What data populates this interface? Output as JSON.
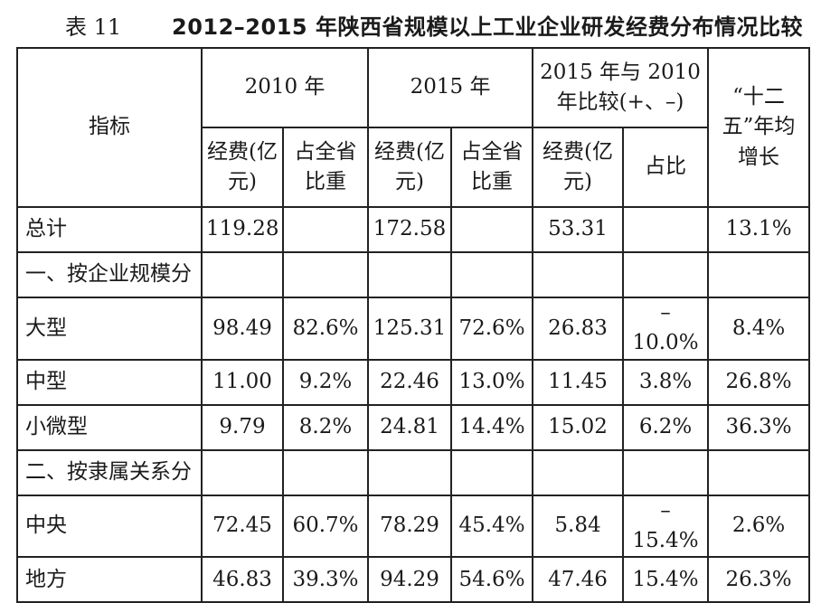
{
  "header": {
    "label": "表 11",
    "title": "2012–2015 年陕西省规模以上工业企业研发经费分布情况比较"
  },
  "table": {
    "columns": {
      "indicator": "指标",
      "groups": [
        "2010 年",
        "2015 年",
        "2015 年与 2010 年比较(+、–)"
      ],
      "growth": "“十二五”年均增长",
      "subcolumns": [
        "经费(亿元)",
        "占全省比重",
        "经费(亿元)",
        "占全省比重",
        "经费(亿元)",
        "占比"
      ]
    },
    "rows": [
      [
        "总计",
        "119.28",
        null,
        "172.58",
        null,
        "53.31",
        null,
        "13.1%"
      ],
      [
        "一、按企业规模分",
        null,
        null,
        null,
        null,
        null,
        null,
        null
      ],
      [
        "大型",
        "98.49",
        "82.6%",
        "125.31",
        "72.6%",
        "26.83",
        "–10.0%",
        "8.4%"
      ],
      [
        "中型",
        "11.00",
        "9.2%",
        "22.46",
        "13.0%",
        "11.45",
        "3.8%",
        "26.8%"
      ],
      [
        "小微型",
        "9.79",
        "8.2%",
        "24.81",
        "14.4%",
        "15.02",
        "6.2%",
        "36.3%"
      ],
      [
        "二、按隶属关系分",
        null,
        null,
        null,
        null,
        null,
        null,
        null
      ],
      [
        "中央",
        "72.45",
        "60.7%",
        "78.29",
        "45.4%",
        "5.84",
        "–15.4%",
        "2.6%"
      ],
      [
        "地方",
        "46.83",
        "39.3%",
        "94.29",
        "54.6%",
        "47.46",
        "15.4%",
        "26.3%"
      ]
    ]
  }
}
